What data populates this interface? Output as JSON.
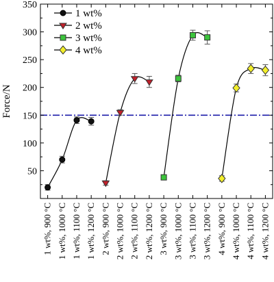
{
  "chart_data": {
    "type": "scatter",
    "xlabel": "",
    "ylabel": "Force/N",
    "ylim": [
      0,
      350
    ],
    "yticks": [
      50,
      100,
      150,
      200,
      250,
      300,
      350
    ],
    "categories": [
      "1 wt%, 900 °C",
      "1 wt%, 1000 °C",
      "1 wt%, 1100 °C",
      "1 wt%, 1200 °C",
      "2 wt%, 900 °C",
      "2 wt%, 1000 °C",
      "2 wt%, 1100 °C",
      "2 wt%, 1200 °C",
      "3 wt%, 900 °C",
      "3 wt%, 1000 °C",
      "3 wt%, 1100 °C",
      "3 wt%, 1200 °C",
      "4 wt%, 900 °C",
      "4 wt%, 1000 °C",
      "4 wt%, 1100 °C",
      "4 wt%, 1200 °C"
    ],
    "reference_line": {
      "y": 150,
      "color": "#1a1aa8",
      "style": "dash-dot"
    },
    "grid": false,
    "legend_position": "top-left",
    "series": [
      {
        "name": "1 wt%",
        "marker": "circle",
        "color": "#111111",
        "category_index": [
          0,
          1,
          2,
          3
        ],
        "values": [
          20,
          70,
          141,
          139
        ],
        "errors": [
          5,
          6,
          6,
          7
        ]
      },
      {
        "name": "2 wt%",
        "marker": "triangle-down",
        "color": "#c0202a",
        "category_index": [
          4,
          5,
          6,
          7
        ],
        "values": [
          28,
          155,
          216,
          210
        ],
        "errors": [
          4,
          5,
          9,
          10
        ]
      },
      {
        "name": "3 wt%",
        "marker": "square",
        "color": "#3cc43c",
        "category_index": [
          8,
          9,
          10,
          11
        ],
        "values": [
          38,
          216,
          294,
          290
        ],
        "errors": [
          4,
          6,
          9,
          12
        ]
      },
      {
        "name": "4 wt%",
        "marker": "diamond",
        "color": "#f2ee2a",
        "category_index": [
          12,
          13,
          14,
          15
        ],
        "values": [
          36,
          199,
          234,
          231
        ],
        "errors": [
          5,
          7,
          9,
          10
        ]
      }
    ]
  }
}
